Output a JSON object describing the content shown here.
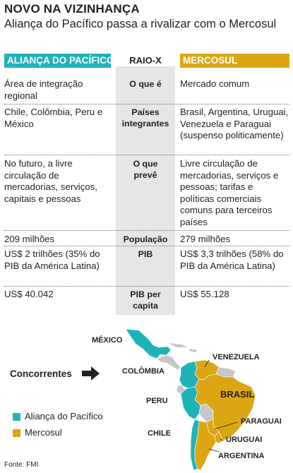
{
  "header": {
    "title": "NOVO NA VIZINHANÇA",
    "subtitle": "Aliança do Pacífico passa a rivalizar com o Mercosul"
  },
  "table": {
    "left_heading": "ALIANÇA DO PACÍFICO",
    "mid_heading": "RAIO-X",
    "right_heading": "MERCOSUL",
    "rows": [
      {
        "label": "O que é",
        "left": "Área de integração regional",
        "right": "Mercado comum"
      },
      {
        "label": "Países integrantes",
        "left": "Chile, Colômbia, Peru e México",
        "right": "Brasil, Argentina, Uruguai, Venezuela e Paraguai (suspenso politicamente)"
      },
      {
        "label": "O que prevê",
        "left": "No futuro, a livre circulação de mercadorias, serviços, capitais e pessoas",
        "right": "Livre circulação de mercadorias, serviços e pessoas; tarifas e políticas comerciais comuns para terceiros países"
      },
      {
        "label": "População",
        "left": "209 milhões",
        "right": "279 milhões"
      },
      {
        "label": "PIB",
        "left": "US$ 2 trilhões (35% do PIB da América Latina)",
        "right": "US$ 3,3 trilhões (58% do PIB da América Latina)"
      },
      {
        "label": "PIB per capita",
        "left": "US$ 40.042",
        "right": "US$ 55.128"
      }
    ]
  },
  "map": {
    "concorrentes_label": "Concorrentes",
    "countries": {
      "mexico": "MÉXICO",
      "venezuela": "VENEZUELA",
      "colombia": "COLÔMBIA",
      "brasil": "BRASIL",
      "peru": "PERU",
      "paraguai": "PARAGUAI",
      "chile": "CHILE",
      "uruguai": "URUGUAI",
      "argentina": "ARGENTINA"
    },
    "legend": [
      {
        "label": "Aliança do Pacífico",
        "color": "#1fb3b9"
      },
      {
        "label": "Mercosul",
        "color": "#dca613"
      }
    ]
  },
  "source": "Fonte: FMI"
}
